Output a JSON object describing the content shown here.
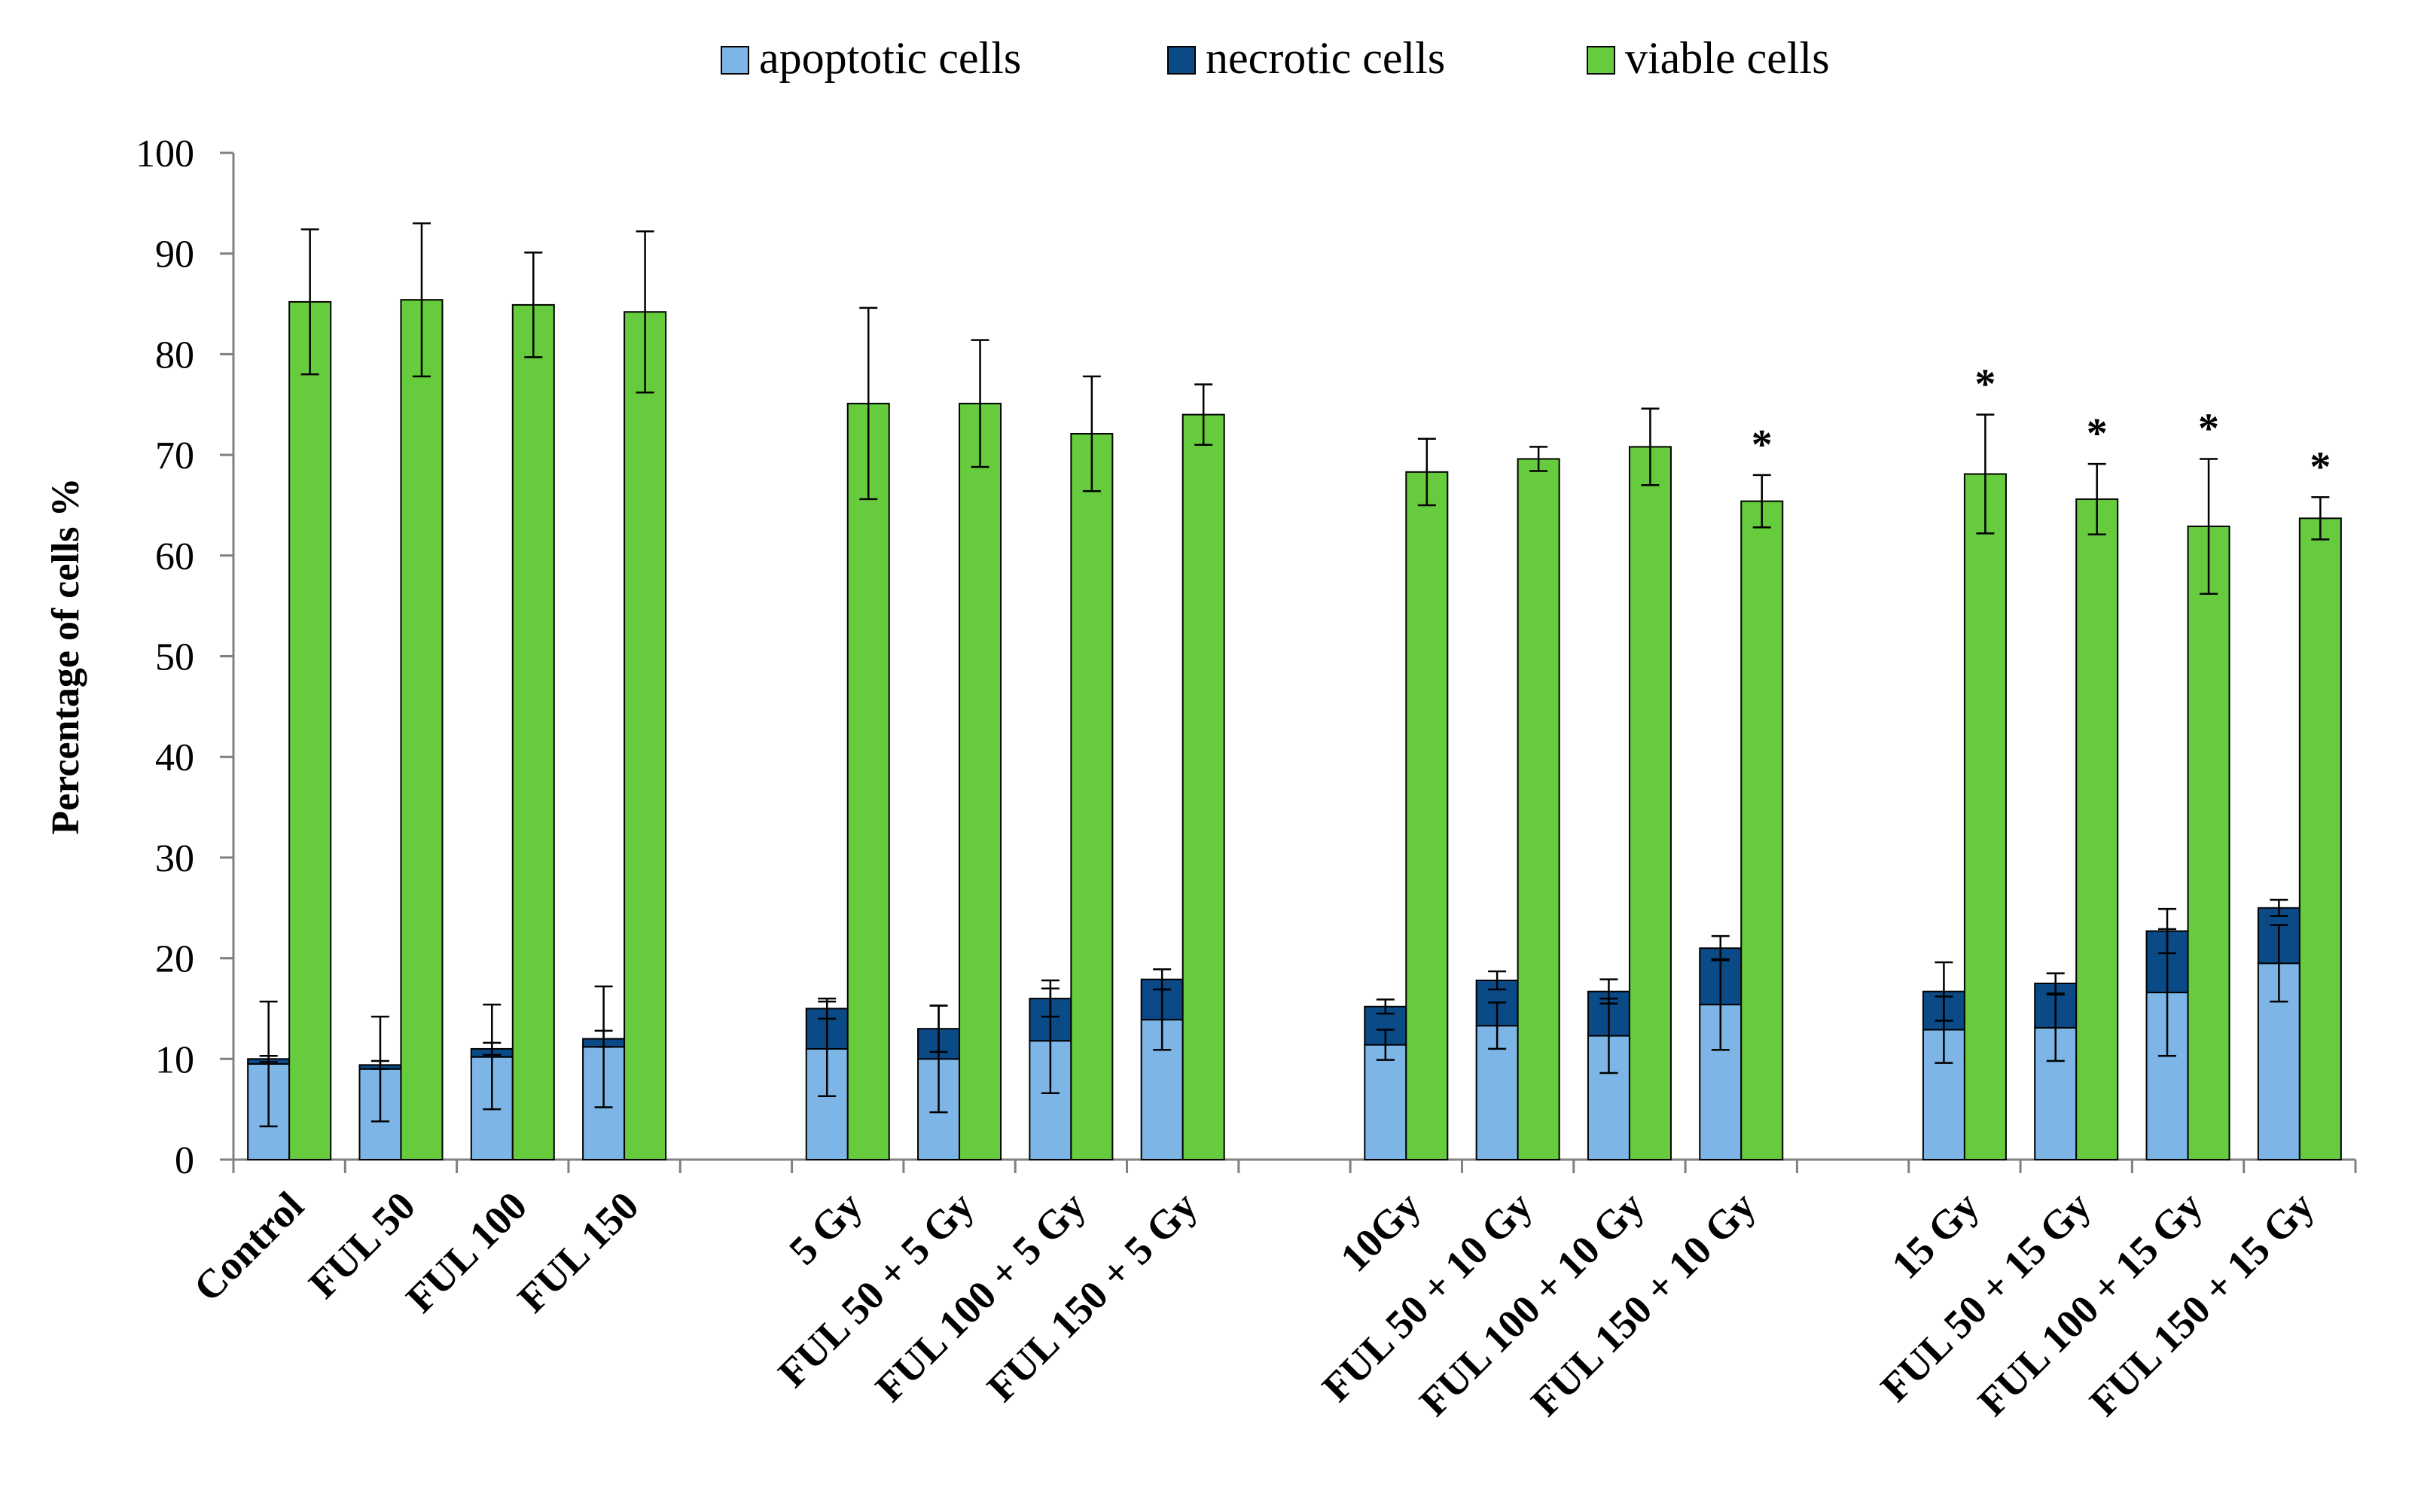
{
  "chart_data": {
    "type": "bar",
    "stacked_series": [
      "apoptotic cells",
      "necrotic cells"
    ],
    "ylabel": "Percentage of cells %",
    "ylim": [
      0,
      100
    ],
    "yticks": [
      0,
      10,
      20,
      30,
      40,
      50,
      60,
      70,
      80,
      90,
      100
    ],
    "colors": {
      "apoptotic cells": "#7cb5e6",
      "necrotic cells": "#0a4a86",
      "viable cells": "#66cc3d"
    },
    "legend": [
      "apoptotic cells",
      "necrotic cells",
      "viable cells"
    ],
    "categories": [
      "Control",
      "FUL 50",
      "FUL 100",
      "FUL 150",
      "",
      "5 Gy",
      "FUL 50 + 5 Gy",
      "FUL 100 + 5 Gy",
      "FUL 150 + 5 Gy",
      "",
      "10Gy",
      "FUL 50 + 10 Gy",
      "FUL 100 + 10 Gy",
      "FUL 150 + 10 Gy",
      "",
      "15 Gy",
      "FUL 50 + 15 Gy",
      "FUL 100 + 15 Gy",
      "FUL 150 + 15 Gy"
    ],
    "series": [
      {
        "name": "apoptotic cells",
        "values": [
          9.5,
          9,
          10.2,
          11.2,
          null,
          11,
          10,
          11.8,
          13.9,
          null,
          11.4,
          13.3,
          12.3,
          15.4,
          null,
          12.9,
          13.1,
          16.6,
          19.5
        ],
        "err": [
          6.2,
          5.2,
          5.2,
          6,
          null,
          4.7,
          5.3,
          5.2,
          3,
          null,
          1.5,
          2.3,
          3.7,
          4.5,
          null,
          3.3,
          3.3,
          6.3,
          3.8
        ]
      },
      {
        "name": "necrotic cells",
        "values": [
          0.5,
          0.4,
          0.8,
          0.8,
          null,
          4,
          3,
          4.2,
          4,
          null,
          3.8,
          4.5,
          4.4,
          5.6,
          null,
          3.8,
          4.4,
          6.1,
          5.5
        ],
        "err": [
          0.3,
          0.4,
          0.6,
          0.8,
          null,
          1,
          2.3,
          1.8,
          1,
          null,
          0.7,
          0.9,
          1.2,
          1.2,
          null,
          2.9,
          1,
          2.2,
          0.8
        ]
      },
      {
        "name": "viable cells",
        "values": [
          85.2,
          85.4,
          84.9,
          84.2,
          null,
          75.1,
          75.1,
          72.1,
          74,
          null,
          68.3,
          69.6,
          70.8,
          65.4,
          null,
          68.1,
          65.6,
          62.9,
          63.7
        ],
        "err": [
          7.2,
          7.6,
          5.2,
          8,
          null,
          9.5,
          6.3,
          5.7,
          3,
          null,
          3.3,
          1.2,
          3.8,
          2.6,
          null,
          5.9,
          3.5,
          6.7,
          2.1
        ],
        "significant": [
          false,
          false,
          false,
          false,
          false,
          false,
          false,
          false,
          false,
          false,
          false,
          false,
          false,
          true,
          false,
          true,
          true,
          true,
          true
        ]
      }
    ],
    "significance_marker": "*"
  }
}
